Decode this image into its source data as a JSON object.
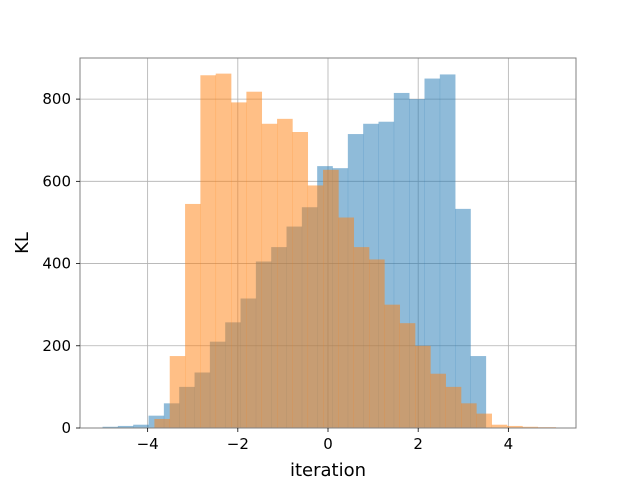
{
  "chart_data": {
    "type": "bar",
    "title": "",
    "xlabel": "iteration",
    "ylabel": "KL",
    "xlim": [
      -5.5,
      5.5
    ],
    "ylim": [
      0,
      900
    ],
    "xticks": [
      -4,
      -2,
      0,
      2,
      4
    ],
    "yticks": [
      0,
      200,
      400,
      600,
      800
    ],
    "xtick_labels": [
      "−4",
      "−2",
      "0",
      "2",
      "4"
    ],
    "ytick_labels": [
      "0",
      "200",
      "400",
      "600",
      "800"
    ],
    "grid": true,
    "series": [
      {
        "color": "#1f77b4",
        "opacity": 0.5,
        "bin_edges": [
          -5.0,
          -4.66,
          -4.32,
          -3.98,
          -3.64,
          -3.3,
          -2.96,
          -2.62,
          -2.28,
          -1.94,
          -1.6,
          -1.26,
          -0.92,
          -0.58,
          -0.24,
          0.1,
          0.44,
          0.78,
          1.12,
          1.46,
          1.8,
          2.14,
          2.48,
          2.82,
          3.16,
          3.5
        ],
        "counts": [
          3,
          5,
          8,
          30,
          60,
          100,
          135,
          210,
          257,
          315,
          405,
          440,
          490,
          537,
          637,
          632,
          715,
          740,
          745,
          815,
          800,
          850,
          860,
          533,
          175
        ]
      },
      {
        "color": "#ff7f0e",
        "opacity": 0.5,
        "bin_edges": [
          -3.85,
          -3.51,
          -3.17,
          -2.83,
          -2.49,
          -2.15,
          -1.81,
          -1.47,
          -1.13,
          -0.79,
          -0.45,
          -0.11,
          0.23,
          0.57,
          0.91,
          1.25,
          1.59,
          1.93,
          2.27,
          2.61,
          2.95,
          3.29,
          3.63,
          3.97,
          4.31,
          4.65,
          5.05
        ],
        "counts": [
          22,
          175,
          545,
          858,
          862,
          792,
          818,
          740,
          752,
          720,
          590,
          628,
          512,
          440,
          410,
          300,
          255,
          200,
          132,
          100,
          60,
          35,
          8,
          5,
          3,
          2
        ]
      }
    ]
  }
}
